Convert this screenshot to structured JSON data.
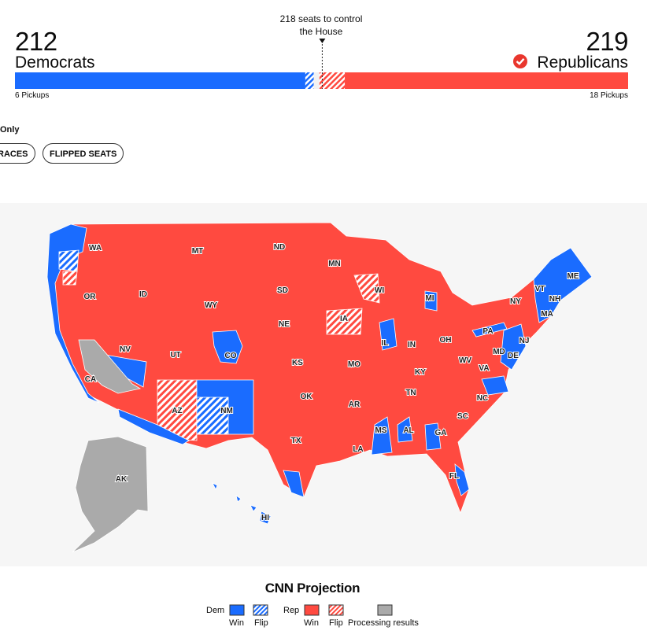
{
  "header": {
    "control": {
      "label": "218 seats to control the House",
      "value": 218
    },
    "dem": {
      "seats": "212",
      "name": "Democrats",
      "pickups": "6 Pickups"
    },
    "rep": {
      "seats": "219",
      "name": "Republicans",
      "pickups": "18 Pickups"
    }
  },
  "bar": {
    "dem_win": 206,
    "dem_flip": 6,
    "uncalled": 4,
    "rep_flip": 18,
    "rep_win": 201
  },
  "colors": {
    "dem": "#1a6cff",
    "rep": "#ff4a40",
    "uncalled": "#aaaaaa"
  },
  "filters": {
    "only": "Only",
    "buttons": [
      "RACES",
      "FLIPPED SEATS"
    ]
  },
  "map": {
    "labels": [
      "WA",
      "MT",
      "ND",
      "MN",
      "OR",
      "ID",
      "WY",
      "SD",
      "WI",
      "MI",
      "NY",
      "VT",
      "NH",
      "ME",
      "MA",
      "NV",
      "UT",
      "CO",
      "NE",
      "IA",
      "IL",
      "IN",
      "OH",
      "PA",
      "NJ",
      "CA",
      "KS",
      "MO",
      "KY",
      "WV",
      "MD",
      "DE",
      "VA",
      "AZ",
      "NM",
      "OK",
      "AR",
      "TN",
      "NC",
      "SC",
      "TX",
      "MS",
      "AL",
      "GA",
      "LA",
      "FL",
      "AK",
      "HI"
    ]
  },
  "legend": {
    "title": "CNN Projection",
    "dem": "Dem",
    "rep": "Rep",
    "dem_win": "Win",
    "dem_flip": "Flip",
    "rep_win": "Win",
    "rep_flip": "Flip",
    "processing": "Processing results"
  }
}
